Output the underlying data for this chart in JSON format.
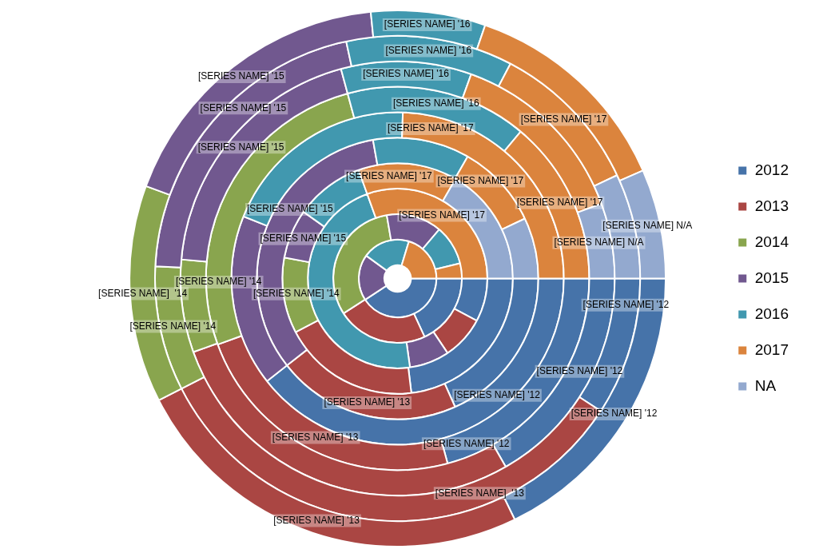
{
  "chart_data": {
    "type": "donut",
    "categories": [
      "2012",
      "2013",
      "2014",
      "2015",
      "2016",
      "2017",
      "NA"
    ],
    "colors": [
      "#4673a9",
      "#aa4643",
      "#89a54e",
      "#71588f",
      "#4198af",
      "#db843d",
      "#93a9cf"
    ],
    "legend": "right",
    "annotations": [
      "[SERIES NAME] '12",
      "[SERIES NAME] '13",
      "[SERIES NAME]  '14",
      "[SERIES NAME] '15",
      "[SERIES NAME] '16",
      "[SERIES NAME] N/A",
      "[SERIES NAME] '12",
      "[SERIES NAME]  '13",
      "[SERIES NAME] '14",
      "[SERIES NAME] '16",
      "[SERIES NAME] '17",
      "[SERIES NAME] '12",
      "[SERIES NAME] '15",
      "[SERIES NAME] '16",
      "[SERIES NAME] N/A",
      "[SERIES NAME] '12",
      "[SERIES NAME] '13",
      "[SERIES NAME] '14",
      "[SERIES NAME] '16",
      "[SERIES NAME] '17",
      "[SERIES NAME] '12",
      "[SERIES NAME] '15",
      "[SERIES NAME] '17",
      "[SERIES NAME] '13",
      "[SERIES NAME] '15",
      "[SERIES NAME] '17",
      "[SERIES NAME] '14",
      "[SERIES NAME] '15",
      "[SERIES NAME] '17",
      "[SERIES NAME] '17"
    ],
    "series": [
      {
        "values": [
          17.8,
          24.7,
          13.1,
          17.8,
          6.9,
          13.1,
          6.6
        ]
      },
      {
        "values": [
          9.2,
          33.3,
          8.3,
          20.8,
          11.1,
          10.3,
          7.0
        ]
      },
      {
        "values": [
          16.7,
          27.8,
          6.9,
          19.4,
          9.7,
          13.9,
          5.6
        ]
      },
      {
        "values": [
          20.8,
          23.6,
          26.4,
          0,
          15.3,
          13.9,
          0
        ]
      },
      {
        "values": [
          39.4,
          0,
          0,
          16.7,
          19.4,
          24.5,
          0
        ]
      },
      {
        "values": [
          18.3,
          21.1,
          0,
          32.8,
          11.1,
          9.7,
          7.0
        ]
      },
      {
        "values": [
          23.1,
          19.2,
          10.6,
          6.9,
          9.7,
          13.9,
          16.6
        ]
      },
      {
        "values": [
          7.8,
          7.8,
          0,
          7.2,
          46.7,
          30.5,
          0
        ]
      },
      {
        "values": [
          18.1,
          22.8,
          31.4,
          13.9,
          10,
          3.8,
          0
        ]
      },
      {
        "values": [
          40.8,
          0,
          0,
          19.2,
          19.7,
          20.3,
          0
        ]
      }
    ]
  }
}
